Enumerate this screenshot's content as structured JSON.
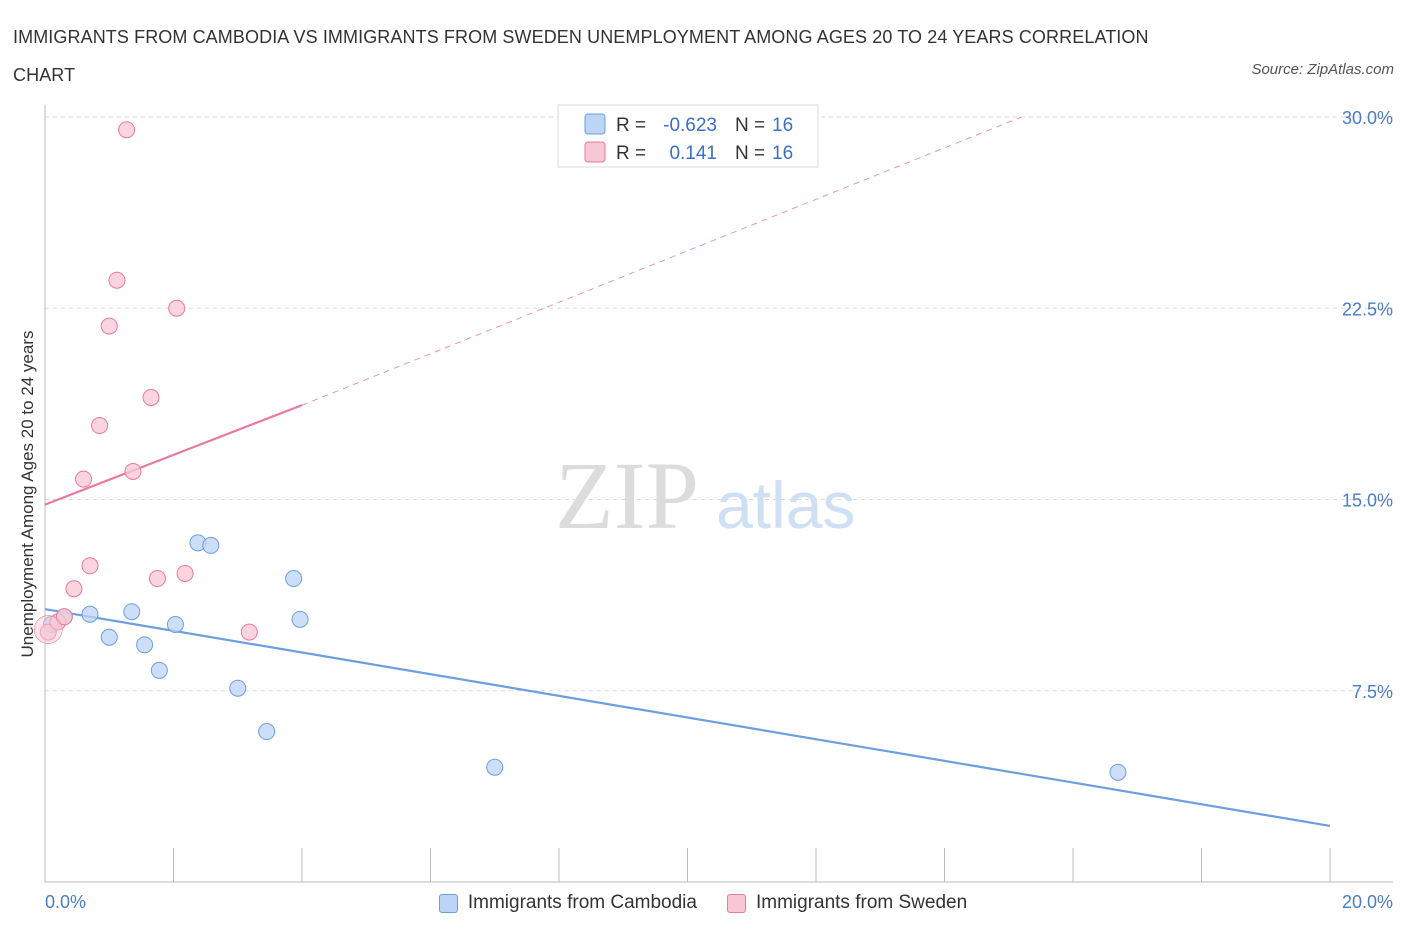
{
  "title": "IMMIGRANTS FROM CAMBODIA VS IMMIGRANTS FROM SWEDEN UNEMPLOYMENT AMONG AGES 20 TO 24 YEARS CORRELATION CHART",
  "source": "Source: ZipAtlas.com",
  "watermark": {
    "zip": "ZIP",
    "atlas": "atlas"
  },
  "chart_data": {
    "type": "scatter",
    "title": "IMMIGRANTS FROM CAMBODIA VS IMMIGRANTS FROM SWEDEN UNEMPLOYMENT AMONG AGES 20 TO 24 YEARS CORRELATION CHART",
    "xlabel": "",
    "ylabel": "Unemployment Among Ages 20 to 24 years",
    "xlim": [
      0,
      20
    ],
    "ylim": [
      0,
      30
    ],
    "x_tick_labels": [
      "0.0%",
      "20.0%"
    ],
    "y_ticks": [
      7.5,
      15.0,
      22.5,
      30.0
    ],
    "y_tick_labels": [
      "7.5%",
      "15.0%",
      "22.5%",
      "30.0%"
    ],
    "grid": true,
    "legend": {
      "placement": "top-center",
      "entries": [
        {
          "r_label": "R =",
          "r_value": "-0.623",
          "n_label": "N =",
          "n_value": "16"
        },
        {
          "r_label": "R =",
          "r_value": "0.141",
          "n_label": "N =",
          "n_value": "16"
        }
      ]
    },
    "series": [
      {
        "name": "Immigrants from Cambodia",
        "color": "#6d9ee0",
        "fill": "#bcd4f6",
        "points": [
          [
            0.1,
            10.1
          ],
          [
            0.3,
            10.4
          ],
          [
            0.7,
            10.5
          ],
          [
            1.0,
            9.6
          ],
          [
            1.35,
            10.6
          ],
          [
            1.55,
            9.3
          ],
          [
            1.78,
            8.3
          ],
          [
            2.03,
            10.1
          ],
          [
            2.38,
            13.3
          ],
          [
            2.58,
            13.2
          ],
          [
            3.0,
            7.6
          ],
          [
            3.45,
            5.9
          ],
          [
            3.87,
            11.9
          ],
          [
            3.97,
            10.3
          ],
          [
            7.0,
            4.5
          ],
          [
            16.7,
            4.3
          ]
        ],
        "trend": {
          "x": [
            0,
            20
          ],
          "y": [
            10.7,
            2.2
          ],
          "dashed_extension": null
        }
      },
      {
        "name": "Immigrants from Sweden",
        "color": "#e9799d",
        "fill": "#f8c7d5",
        "points": [
          [
            0.05,
            9.8
          ],
          [
            0.2,
            10.2
          ],
          [
            0.45,
            11.5
          ],
          [
            0.6,
            15.8
          ],
          [
            0.7,
            12.4
          ],
          [
            0.85,
            17.9
          ],
          [
            1.0,
            21.8
          ],
          [
            1.12,
            23.6
          ],
          [
            1.27,
            29.5
          ],
          [
            1.37,
            16.1
          ],
          [
            1.65,
            19.0
          ],
          [
            1.75,
            11.9
          ],
          [
            2.05,
            22.5
          ],
          [
            2.18,
            12.1
          ],
          [
            3.18,
            9.8
          ],
          [
            0.3,
            10.4
          ]
        ],
        "trend": {
          "x": [
            0,
            4
          ],
          "y": [
            14.8,
            18.7
          ],
          "dashed_extension": {
            "x": [
              4,
              15.2
            ],
            "y": [
              18.7,
              30.0
            ]
          }
        }
      }
    ]
  }
}
